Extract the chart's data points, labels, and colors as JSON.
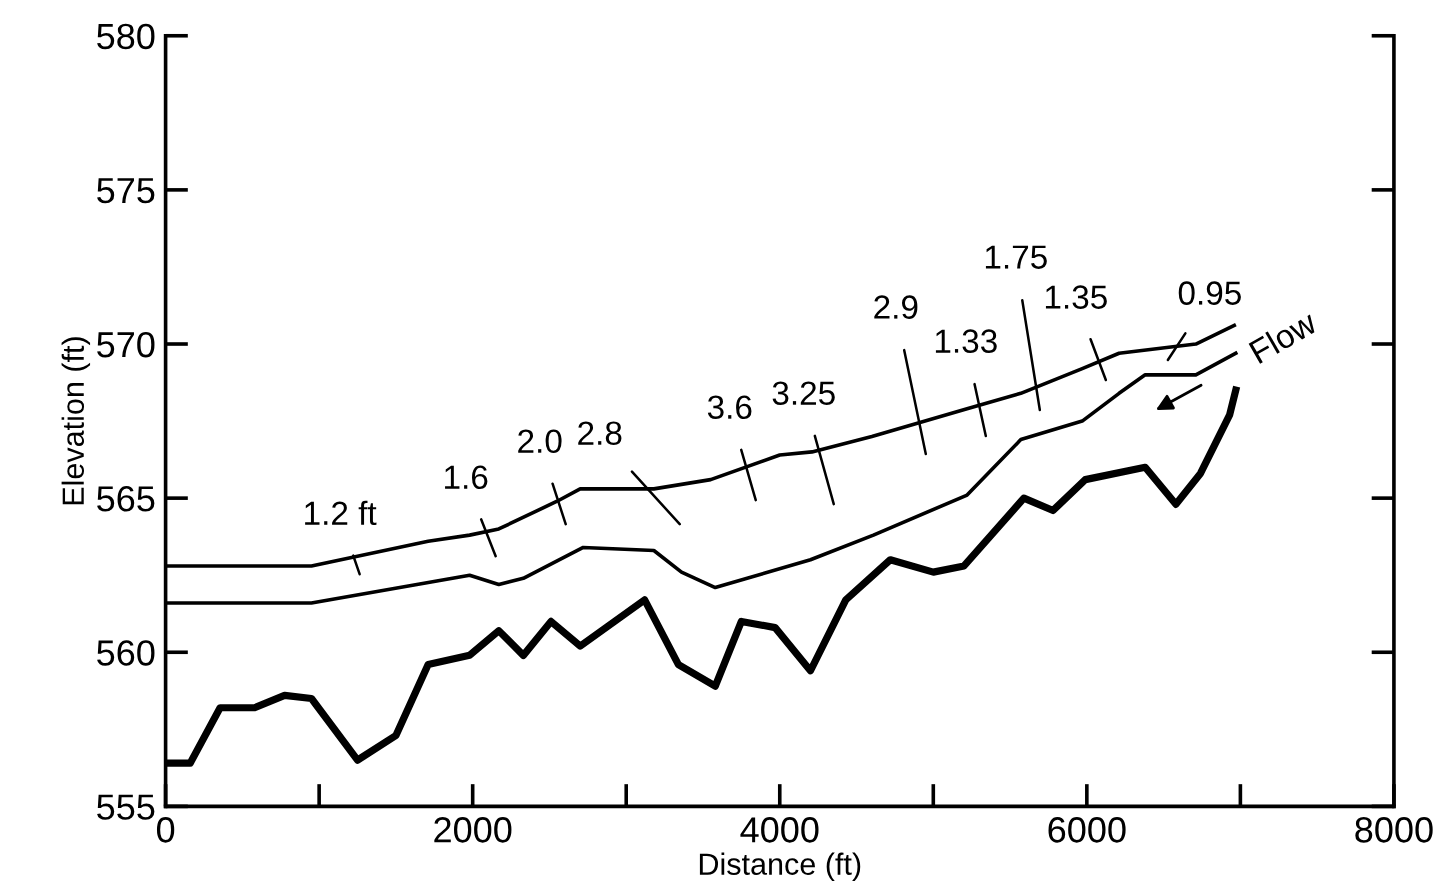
{
  "chart_data": {
    "type": "line",
    "xlabel": "Distance (ft)",
    "ylabel": "Elevation (ft)",
    "xlim": [
      0,
      8000
    ],
    "ylim": [
      555,
      580
    ],
    "xticks": [
      0,
      {
        "value": 1000,
        "label": null
      },
      2000,
      {
        "value": 3000,
        "label": null
      },
      4000,
      {
        "value": 5000,
        "label": null
      },
      6000,
      {
        "value": 7000,
        "label": null
      },
      8000
    ],
    "yticks": [
      555,
      560,
      565,
      570,
      575,
      580
    ],
    "grid": false,
    "legend": false,
    "marker": "none",
    "line_style": "solid",
    "series": [
      {
        "color": "#000000",
        "x": [
          0,
          950,
          1710,
          1980,
          2170,
          2550,
          2700,
          3180,
          3550,
          4000,
          4210,
          4600,
          5220,
          5570,
          5970,
          6210,
          6710,
          6960
        ],
        "values": [
          562.8,
          562.8,
          563.6,
          563.8,
          564.0,
          564.9,
          565.3,
          565.3,
          565.6,
          566.4,
          566.5,
          567.0,
          567.9,
          568.4,
          569.2,
          569.7,
          570.0,
          570.6
        ]
      },
      {
        "color": "#000000",
        "x": [
          0,
          950,
          1980,
          2170,
          2330,
          2720,
          3180,
          3360,
          3580,
          4200,
          4610,
          5220,
          5570,
          5970,
          6210,
          6380,
          6710,
          6970
        ],
        "values": [
          561.6,
          561.6,
          562.5,
          562.2,
          562.4,
          563.4,
          563.3,
          562.6,
          562.1,
          563.0,
          563.8,
          565.1,
          566.9,
          567.5,
          568.4,
          569.0,
          569.0,
          569.7
        ]
      },
      {
        "color": "#000000",
        "x": [
          0,
          160,
          355,
          580,
          775,
          950,
          1250,
          1500,
          1710,
          1980,
          2170,
          2330,
          2510,
          2700,
          3120,
          3340,
          3580,
          3750,
          3970,
          4200,
          4430,
          4720,
          5000,
          5200,
          5590,
          5780,
          5990,
          6380,
          6580,
          6740,
          6930,
          6970
        ],
        "values": [
          556.4,
          556.4,
          558.2,
          558.2,
          558.6,
          558.5,
          556.5,
          557.3,
          559.6,
          559.9,
          560.7,
          559.9,
          561.0,
          560.2,
          561.7,
          559.6,
          558.9,
          561.0,
          560.8,
          559.4,
          561.7,
          563.0,
          562.6,
          562.8,
          565.0,
          564.6,
          565.6,
          566.0,
          564.8,
          565.8,
          567.7,
          568.5
        ]
      }
    ],
    "annotations": [
      "1.2 ft",
      "1.6",
      "2.0",
      "2.8",
      "3.6",
      "3.25",
      "2.9",
      "1.33",
      "1.75",
      "1.35",
      "0.95",
      "Flow"
    ]
  }
}
